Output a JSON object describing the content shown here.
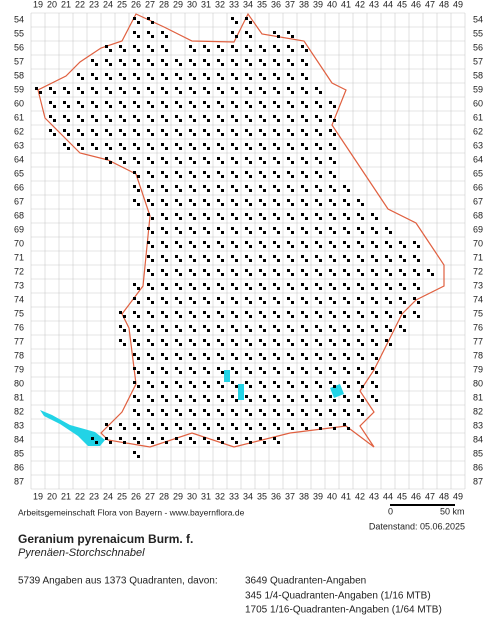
{
  "map": {
    "col_labels": [
      19,
      20,
      21,
      22,
      23,
      24,
      25,
      26,
      27,
      28,
      29,
      30,
      31,
      32,
      33,
      34,
      35,
      36,
      37,
      38,
      39,
      40,
      41,
      42,
      43,
      44,
      45,
      46,
      47,
      48,
      49
    ],
    "row_labels": [
      54,
      55,
      56,
      57,
      58,
      59,
      60,
      61,
      62,
      63,
      64,
      65,
      66,
      67,
      68,
      69,
      70,
      71,
      72,
      73,
      74,
      75,
      76,
      77,
      78,
      79,
      80,
      81,
      82,
      83,
      84,
      85,
      86,
      87
    ],
    "occurrences": [
      {
        "row": 54,
        "ranges": [
          [
            26,
            27
          ],
          [
            33,
            34
          ]
        ]
      },
      {
        "row": 55,
        "ranges": [
          [
            26,
            28
          ],
          [
            33,
            34
          ],
          [
            36,
            37
          ]
        ]
      },
      {
        "row": 56,
        "ranges": [
          [
            24,
            28
          ],
          [
            30,
            34
          ],
          [
            35,
            38
          ]
        ]
      },
      {
        "row": 57,
        "ranges": [
          [
            23,
            38
          ]
        ]
      },
      {
        "row": 58,
        "ranges": [
          [
            22,
            38
          ]
        ]
      },
      {
        "row": 59,
        "ranges": [
          [
            19,
            39
          ]
        ]
      },
      {
        "row": 60,
        "ranges": [
          [
            20,
            40
          ]
        ]
      },
      {
        "row": 61,
        "ranges": [
          [
            20,
            40
          ]
        ]
      },
      {
        "row": 62,
        "ranges": [
          [
            20,
            40
          ]
        ]
      },
      {
        "row": 63,
        "ranges": [
          [
            21,
            40
          ]
        ]
      },
      {
        "row": 64,
        "ranges": [
          [
            24,
            40
          ]
        ]
      },
      {
        "row": 65,
        "ranges": [
          [
            26,
            40
          ]
        ]
      },
      {
        "row": 66,
        "ranges": [
          [
            26,
            41
          ]
        ]
      },
      {
        "row": 67,
        "ranges": [
          [
            26,
            42
          ]
        ]
      },
      {
        "row": 68,
        "ranges": [
          [
            27,
            43
          ]
        ]
      },
      {
        "row": 69,
        "ranges": [
          [
            27,
            44
          ]
        ]
      },
      {
        "row": 70,
        "ranges": [
          [
            27,
            46
          ]
        ]
      },
      {
        "row": 71,
        "ranges": [
          [
            27,
            46
          ]
        ]
      },
      {
        "row": 72,
        "ranges": [
          [
            27,
            47
          ]
        ]
      },
      {
        "row": 73,
        "ranges": [
          [
            26,
            46
          ]
        ]
      },
      {
        "row": 74,
        "ranges": [
          [
            26,
            46
          ]
        ]
      },
      {
        "row": 75,
        "ranges": [
          [
            25,
            46
          ]
        ]
      },
      {
        "row": 76,
        "ranges": [
          [
            25,
            45
          ]
        ]
      },
      {
        "row": 77,
        "ranges": [
          [
            25,
            44
          ]
        ]
      },
      {
        "row": 78,
        "ranges": [
          [
            26,
            43
          ]
        ]
      },
      {
        "row": 79,
        "ranges": [
          [
            26,
            43
          ]
        ]
      },
      {
        "row": 80,
        "ranges": [
          [
            26,
            43
          ]
        ]
      },
      {
        "row": 81,
        "ranges": [
          [
            26,
            43
          ]
        ]
      },
      {
        "row": 82,
        "ranges": [
          [
            26,
            42
          ]
        ]
      },
      {
        "row": 83,
        "ranges": [
          [
            24,
            41
          ]
        ]
      },
      {
        "row": 84,
        "ranges": [
          [
            23,
            36
          ]
        ]
      },
      {
        "row": 85,
        "ranges": [
          [
            26,
            26
          ]
        ]
      }
    ],
    "scale_start": "0",
    "scale_end": "50 km"
  },
  "footer": {
    "credit": "Arbeitsgemeinschaft Flora von Bayern - www.bayernflora.de",
    "date": "Datenstand: 05.06.2025",
    "title": "Geranium pyrenaicum Burm. f.",
    "subtitle": "Pyrenäen-Storchschnabel",
    "summary": "5739 Angaben aus 1373 Quadranten, davon:",
    "details": [
      "3649 Quadranten-Angaben",
      "345 1/4-Quadranten-Angaben (1/16 MTB)",
      "1705 1/16-Quadranten-Angaben (1/64 MTB)"
    ]
  }
}
